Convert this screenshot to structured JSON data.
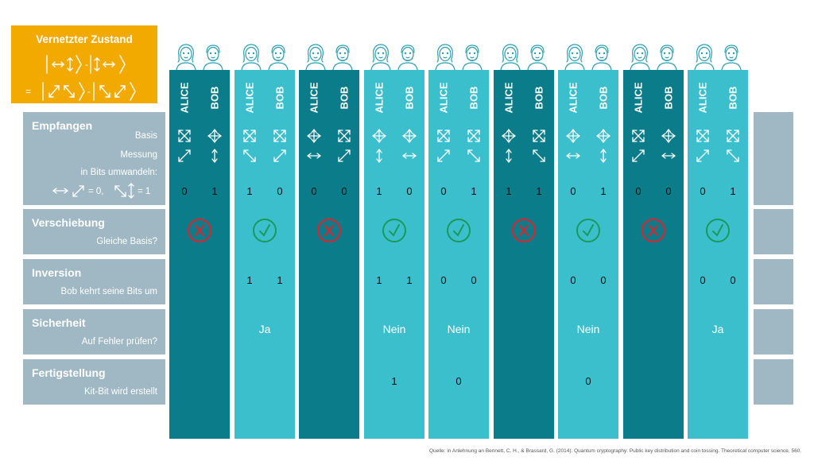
{
  "entangled": {
    "title": "Vernetzter Zustand",
    "eq_sign": "=",
    "minus": "-"
  },
  "rows": {
    "receive": {
      "title": "Empfangen",
      "basis": "Basis",
      "measure": "Messung",
      "convert": "in Bits umwandeln:",
      "rule_a": "= 0,",
      "rule_b": "= 1"
    },
    "shift": {
      "title": "Verschiebung",
      "sub": "Gleiche Basis?"
    },
    "inversion": {
      "title": "Inversion",
      "sub": "Bob kehrt seine Bits um"
    },
    "security": {
      "title": "Sicherheit",
      "sub": "Auf Fehler prüfen?"
    },
    "finish": {
      "title": "Fertigstellung",
      "sub": "Kit-Bit wird erstellt"
    }
  },
  "labels": {
    "alice": "ALICE",
    "bob": "BOB"
  },
  "columns": [
    {
      "shade": "dark",
      "basis": [
        "diag",
        "plus"
      ],
      "measure": [
        "ne",
        "v"
      ],
      "bits": [
        "0",
        "1"
      ],
      "same": false,
      "inv": [
        "",
        ""
      ],
      "sec": "",
      "fin": ""
    },
    {
      "shade": "light",
      "basis": [
        "diag",
        "diag"
      ],
      "measure": [
        "nw",
        "ne"
      ],
      "bits": [
        "1",
        "0"
      ],
      "same": true,
      "inv": [
        "1",
        "1"
      ],
      "sec": "Ja",
      "fin": ""
    },
    {
      "shade": "dark",
      "basis": [
        "plus",
        "diag"
      ],
      "measure": [
        "h",
        "ne"
      ],
      "bits": [
        "0",
        "0"
      ],
      "same": false,
      "inv": [
        "",
        ""
      ],
      "sec": "",
      "fin": ""
    },
    {
      "shade": "light",
      "basis": [
        "plus",
        "plus"
      ],
      "measure": [
        "v",
        "h"
      ],
      "bits": [
        "1",
        "0"
      ],
      "same": true,
      "inv": [
        "1",
        "1"
      ],
      "sec": "Nein",
      "fin": "1"
    },
    {
      "shade": "light",
      "basis": [
        "diag",
        "diag"
      ],
      "measure": [
        "ne",
        "nw"
      ],
      "bits": [
        "0",
        "1"
      ],
      "same": true,
      "inv": [
        "0",
        "0"
      ],
      "sec": "Nein",
      "fin": "0"
    },
    {
      "shade": "dark",
      "basis": [
        "plus",
        "diag"
      ],
      "measure": [
        "v",
        "nw"
      ],
      "bits": [
        "1",
        "1"
      ],
      "same": false,
      "inv": [
        "",
        ""
      ],
      "sec": "",
      "fin": ""
    },
    {
      "shade": "light",
      "basis": [
        "plus",
        "plus"
      ],
      "measure": [
        "h",
        "v"
      ],
      "bits": [
        "0",
        "1"
      ],
      "same": true,
      "inv": [
        "0",
        "0"
      ],
      "sec": "Nein",
      "fin": "0"
    },
    {
      "shade": "dark",
      "basis": [
        "diag",
        "plus"
      ],
      "measure": [
        "ne",
        "h"
      ],
      "bits": [
        "0",
        "0"
      ],
      "same": false,
      "inv": [
        "",
        ""
      ],
      "sec": "",
      "fin": ""
    },
    {
      "shade": "light",
      "basis": [
        "diag",
        "diag"
      ],
      "measure": [
        "ne",
        "nw"
      ],
      "bits": [
        "0",
        "1"
      ],
      "same": true,
      "inv": [
        "0",
        "0"
      ],
      "sec": "Ja",
      "fin": ""
    }
  ],
  "colors": {
    "dark": "#0b7d8a",
    "light": "#3bbfcc",
    "wrong": "#e3202c",
    "right": "#1a9a5a",
    "accent": "#f2a900",
    "label_bg": "#9fb8c4"
  },
  "source": "Quelle: in Anlehnung an Bennett, C. H., & Brassard, G. (2014). Quantum cryptography: Public key distribution and coin tossing. Theoretical computer science, 560."
}
